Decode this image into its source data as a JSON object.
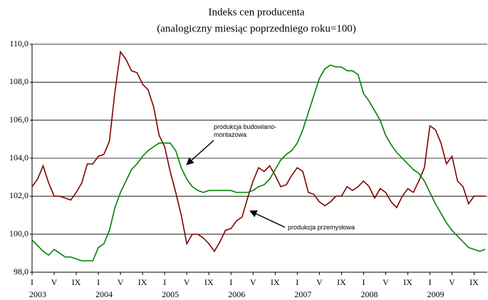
{
  "chart_data": {
    "type": "line",
    "title": "Indeks cen producenta",
    "subtitle": "(analogiczny miesiąc poprzedniego roku=100)",
    "categories": [
      "I",
      null,
      null,
      null,
      "V",
      null,
      null,
      null,
      "IX",
      null,
      null,
      null,
      "I",
      null,
      null,
      null,
      "V",
      null,
      null,
      null,
      "IX",
      null,
      null,
      null,
      "I",
      null,
      null,
      null,
      "V",
      null,
      null,
      null,
      "IX",
      null,
      null,
      null,
      "I",
      null,
      null,
      null,
      "V",
      null,
      null,
      null,
      "IX",
      null,
      null,
      null,
      "I",
      null,
      null,
      null,
      "V",
      null,
      null,
      null,
      "IX",
      null,
      null,
      null,
      "I",
      null,
      null,
      null,
      "V",
      null,
      null,
      null,
      "IX",
      null,
      null,
      null,
      "I",
      null,
      null,
      null,
      "V",
      null,
      null,
      null,
      "IX",
      null,
      null
    ],
    "years": [
      "2003",
      "2004",
      "2005",
      "2006",
      "2007",
      "2008",
      "2009"
    ],
    "ylim": [
      98,
      110
    ],
    "yticks": [
      {
        "value": 98,
        "label": "98,0"
      },
      {
        "value": 100,
        "label": "100,0"
      },
      {
        "value": 102,
        "label": "102,0"
      },
      {
        "value": 104,
        "label": "104,0"
      },
      {
        "value": 106,
        "label": "106,0"
      },
      {
        "value": 108,
        "label": "108,0"
      },
      {
        "value": 110,
        "label": "110,0"
      }
    ],
    "grid": true,
    "series": [
      {
        "name": "produkcja przemysłowa",
        "color": "#800000",
        "values": [
          102.5,
          102.9,
          103.6,
          102.7,
          102.0,
          102.0,
          101.9,
          101.8,
          102.2,
          102.7,
          103.7,
          103.7,
          104.1,
          104.2,
          104.9,
          107.5,
          109.6,
          109.2,
          108.6,
          108.5,
          107.9,
          107.6,
          106.7,
          105.2,
          104.6,
          103.3,
          102.2,
          101.0,
          99.5,
          100.0,
          100.0,
          99.8,
          99.5,
          99.1,
          99.6,
          100.2,
          100.3,
          100.7,
          100.9,
          101.9,
          102.8,
          103.5,
          103.3,
          103.6,
          103.1,
          102.5,
          102.6,
          103.1,
          103.5,
          103.3,
          102.2,
          102.1,
          101.7,
          101.5,
          101.7,
          102.0,
          102.0,
          102.5,
          102.3,
          102.5,
          102.8,
          102.5,
          101.9,
          102.4,
          102.2,
          101.7,
          101.4,
          102.0,
          102.4,
          102.2,
          102.8,
          103.5,
          105.7,
          105.5,
          104.8,
          103.7,
          104.1,
          102.8,
          102.5,
          101.6,
          102.0,
          102.0,
          102.0
        ]
      },
      {
        "name": "produkcja budowlano-montażowa",
        "color": "#008000",
        "values": [
          99.7,
          99.4,
          99.1,
          98.9,
          99.2,
          99.0,
          98.8,
          98.8,
          98.7,
          98.6,
          98.6,
          98.6,
          99.3,
          99.5,
          100.2,
          101.4,
          102.2,
          102.8,
          103.4,
          103.7,
          104.1,
          104.4,
          104.6,
          104.8,
          104.8,
          104.8,
          104.4,
          103.5,
          102.9,
          102.5,
          102.3,
          102.2,
          102.3,
          102.3,
          102.3,
          102.3,
          102.3,
          102.2,
          102.2,
          102.2,
          102.3,
          102.5,
          102.6,
          102.9,
          103.4,
          103.9,
          104.2,
          104.4,
          104.8,
          105.5,
          106.4,
          107.3,
          108.2,
          108.7,
          108.9,
          108.8,
          108.8,
          108.6,
          108.6,
          108.4,
          107.4,
          107.0,
          106.5,
          106.0,
          105.2,
          104.7,
          104.3,
          104.0,
          103.7,
          103.4,
          103.2,
          102.8,
          102.2,
          101.6,
          101.1,
          100.6,
          100.2,
          99.9,
          99.6,
          99.3,
          99.2,
          99.1,
          99.2
        ]
      }
    ]
  }
}
